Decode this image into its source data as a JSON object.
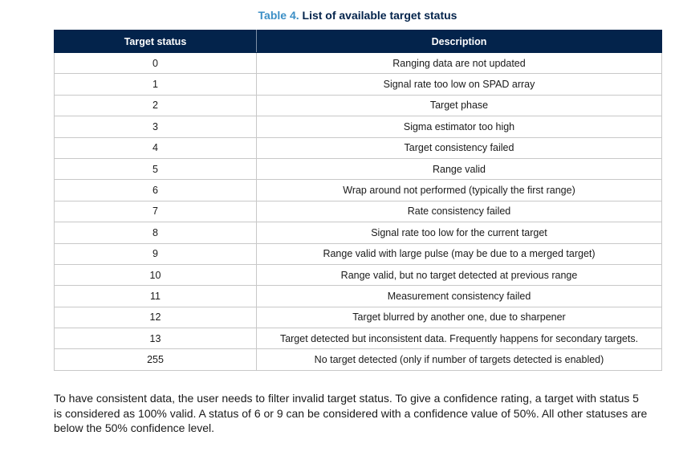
{
  "caption": {
    "number": "Table 4.",
    "title": "List of available target status"
  },
  "table": {
    "headers": [
      "Target status",
      "Description"
    ],
    "rows": [
      {
        "status": "0",
        "description": "Ranging data are not updated"
      },
      {
        "status": "1",
        "description": "Signal rate too low on SPAD array"
      },
      {
        "status": "2",
        "description": "Target phase"
      },
      {
        "status": "3",
        "description": "Sigma estimator too high"
      },
      {
        "status": "4",
        "description": "Target consistency failed"
      },
      {
        "status": "5",
        "description": "Range valid"
      },
      {
        "status": "6",
        "description": "Wrap around not performed (typically the first range)"
      },
      {
        "status": "7",
        "description": "Rate consistency failed"
      },
      {
        "status": "8",
        "description": "Signal rate too low for the current target"
      },
      {
        "status": "9",
        "description": "Range valid with large pulse (may be due to a merged target)"
      },
      {
        "status": "10",
        "description": "Range valid, but no target detected at previous range"
      },
      {
        "status": "11",
        "description": "Measurement consistency failed"
      },
      {
        "status": "12",
        "description": "Target blurred by another one, due to sharpener"
      },
      {
        "status": "13",
        "description": "Target detected but inconsistent data. Frequently happens for secondary targets."
      },
      {
        "status": "255",
        "description": "No target detected (only if number of targets detected is enabled)"
      }
    ]
  },
  "paragraph": "To have consistent data, the user needs to filter invalid target status. To give a confidence rating, a target with status 5 is considered as 100% valid. A status of 6 or 9 can be considered with a confidence value of 50%. All other statuses are below the 50% confidence level.",
  "colors": {
    "header_bg": "#03234b",
    "caption_number": "#3c8fc6",
    "caption_title": "#03234b",
    "grid": "#c8c8c8"
  }
}
